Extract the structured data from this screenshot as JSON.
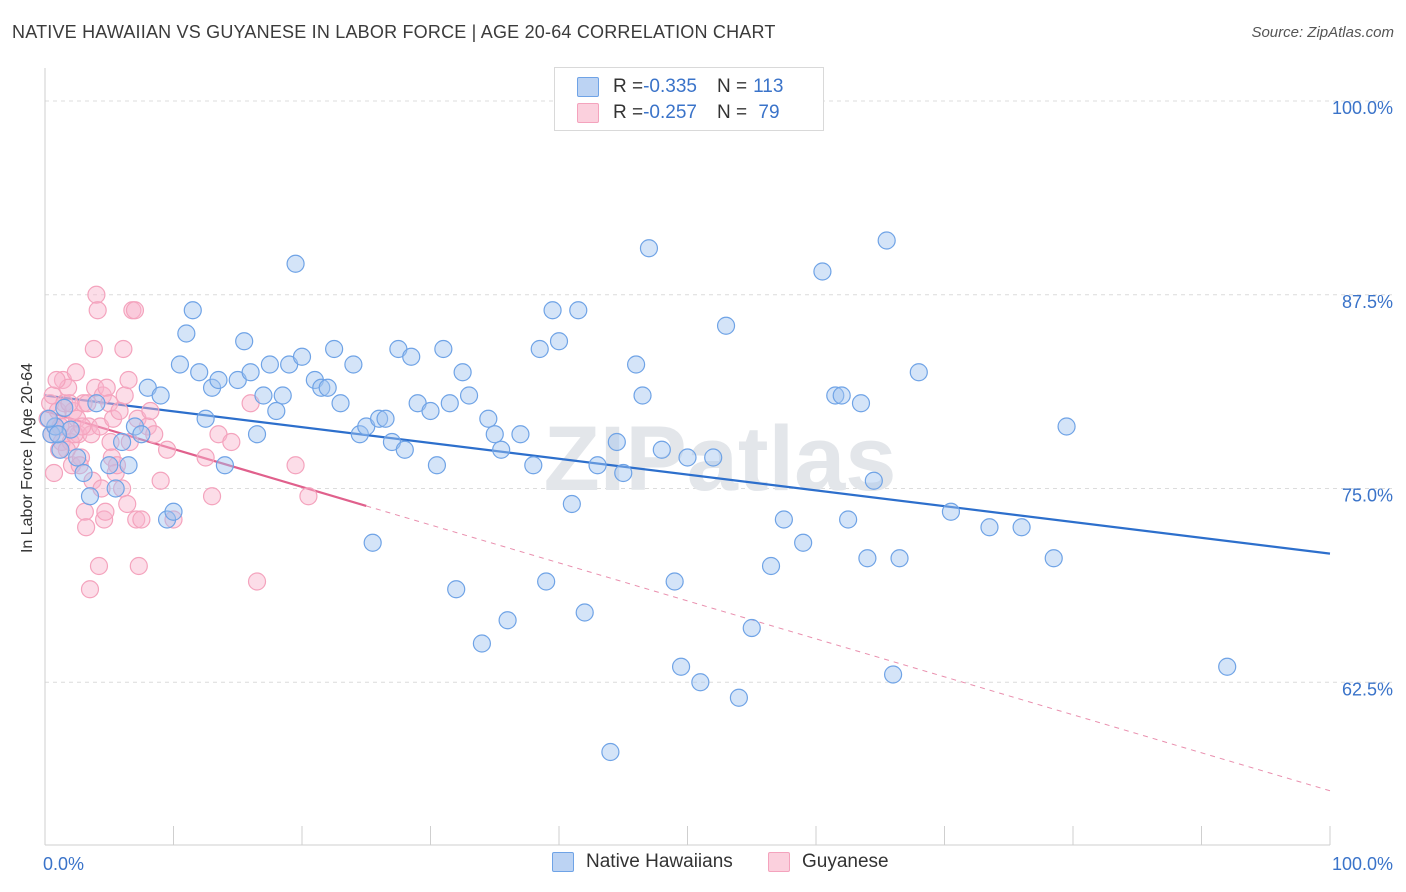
{
  "title": "NATIVE HAWAIIAN VS GUYANESE IN LABOR FORCE | AGE 20-64 CORRELATION CHART",
  "source": "Source: ZipAtlas.com",
  "chart_data": {
    "type": "scatter",
    "title": "NATIVE HAWAIIAN VS GUYANESE IN LABOR FORCE | AGE 20-64 CORRELATION CHART",
    "xlabel": "",
    "ylabel": "In Labor Force | Age 20-64",
    "xlim": [
      0,
      100
    ],
    "ylim": [
      52.0,
      102.0
    ],
    "x_tick_labels": [
      "0.0%",
      "100.0%"
    ],
    "y_ticks": [
      62.5,
      75.0,
      87.5,
      100.0
    ],
    "y_tick_labels": [
      "62.5%",
      "75.0%",
      "87.5%",
      "100.0%"
    ],
    "watermark": "ZIPatlas",
    "legend": {
      "rows": [
        {
          "r_label": "R = ",
          "r_value": "-0.335",
          "n_label": "N = ",
          "n_value": "113"
        },
        {
          "r_label": "R = ",
          "r_value": "-0.257",
          "n_label": "N = ",
          "n_value": " 79"
        }
      ]
    },
    "series": [
      {
        "name": "Native Hawaiians",
        "color": "#6fa3e6",
        "line_color": "#2d6fcc",
        "trend": {
          "x0": 0,
          "y0": 81.0,
          "x1": 100,
          "y1": 70.8,
          "solid_until": 100
        },
        "points": [
          [
            0.5,
            78.5
          ],
          [
            0.8,
            79.0
          ],
          [
            1.2,
            77.5
          ],
          [
            1.5,
            80.2
          ],
          [
            2.0,
            78.8
          ],
          [
            2.5,
            77.0
          ],
          [
            3.0,
            76.0
          ],
          [
            3.5,
            74.5
          ],
          [
            4.0,
            80.5
          ],
          [
            5.0,
            76.5
          ],
          [
            5.5,
            75.0
          ],
          [
            6.0,
            78.0
          ],
          [
            6.5,
            76.5
          ],
          [
            7.0,
            79.0
          ],
          [
            7.5,
            78.5
          ],
          [
            8.0,
            81.5
          ],
          [
            9.0,
            81.0
          ],
          [
            9.5,
            73.0
          ],
          [
            10.0,
            73.5
          ],
          [
            10.5,
            83.0
          ],
          [
            11.0,
            85.0
          ],
          [
            11.5,
            86.5
          ],
          [
            12.0,
            82.5
          ],
          [
            12.5,
            79.5
          ],
          [
            13.0,
            81.5
          ],
          [
            13.5,
            82.0
          ],
          [
            14.0,
            76.5
          ],
          [
            15.0,
            82.0
          ],
          [
            15.5,
            84.5
          ],
          [
            16.0,
            82.5
          ],
          [
            16.5,
            78.5
          ],
          [
            17.0,
            81.0
          ],
          [
            17.5,
            83.0
          ],
          [
            18.0,
            80.0
          ],
          [
            18.5,
            81.0
          ],
          [
            19.0,
            83.0
          ],
          [
            19.5,
            89.5
          ],
          [
            20.0,
            83.5
          ],
          [
            21.0,
            82.0
          ],
          [
            21.5,
            81.5
          ],
          [
            22.0,
            81.5
          ],
          [
            22.5,
            84.0
          ],
          [
            23.0,
            80.5
          ],
          [
            24.0,
            83.0
          ],
          [
            24.5,
            78.5
          ],
          [
            25.0,
            79.0
          ],
          [
            25.5,
            71.5
          ],
          [
            26.0,
            79.5
          ],
          [
            26.5,
            79.5
          ],
          [
            27.0,
            78.0
          ],
          [
            27.5,
            84.0
          ],
          [
            28.0,
            77.5
          ],
          [
            28.5,
            83.5
          ],
          [
            29.0,
            80.5
          ],
          [
            30.0,
            80.0
          ],
          [
            30.5,
            76.5
          ],
          [
            31.0,
            84.0
          ],
          [
            31.5,
            80.5
          ],
          [
            32.0,
            68.5
          ],
          [
            32.5,
            82.5
          ],
          [
            33.0,
            81.0
          ],
          [
            34.0,
            65.0
          ],
          [
            34.5,
            79.5
          ],
          [
            35.0,
            78.5
          ],
          [
            35.5,
            77.5
          ],
          [
            36.0,
            66.5
          ],
          [
            37.0,
            78.5
          ],
          [
            38.0,
            76.5
          ],
          [
            38.5,
            84.0
          ],
          [
            39.0,
            69.0
          ],
          [
            39.5,
            86.5
          ],
          [
            40.0,
            84.5
          ],
          [
            41.0,
            74.0
          ],
          [
            41.5,
            86.5
          ],
          [
            42.0,
            67.0
          ],
          [
            43.0,
            76.5
          ],
          [
            44.0,
            58.0
          ],
          [
            44.5,
            78.0
          ],
          [
            45.0,
            76.0
          ],
          [
            46.0,
            83.0
          ],
          [
            46.5,
            81.0
          ],
          [
            47.0,
            90.5
          ],
          [
            48.0,
            77.5
          ],
          [
            49.0,
            69.0
          ],
          [
            49.5,
            63.5
          ],
          [
            50.0,
            77.0
          ],
          [
            51.0,
            62.5
          ],
          [
            52.0,
            77.0
          ],
          [
            53.0,
            85.5
          ],
          [
            54.0,
            61.5
          ],
          [
            55.0,
            66.0
          ],
          [
            56.5,
            70.0
          ],
          [
            57.5,
            73.0
          ],
          [
            59.0,
            71.5
          ],
          [
            60.5,
            89.0
          ],
          [
            61.5,
            81.0
          ],
          [
            62.0,
            81.0
          ],
          [
            62.5,
            73.0
          ],
          [
            63.5,
            80.5
          ],
          [
            64.0,
            70.5
          ],
          [
            64.5,
            75.5
          ],
          [
            65.5,
            91.0
          ],
          [
            66.0,
            63.0
          ],
          [
            66.5,
            70.5
          ],
          [
            68.0,
            82.5
          ],
          [
            70.5,
            73.5
          ],
          [
            73.5,
            72.5
          ],
          [
            76.0,
            72.5
          ],
          [
            78.5,
            70.5
          ],
          [
            79.5,
            79.0
          ],
          [
            92.0,
            63.5
          ],
          [
            0.3,
            79.5
          ],
          [
            1.0,
            78.5
          ]
        ]
      },
      {
        "name": "Guyanese",
        "color": "#f4a3bd",
        "line_color": "#e0608c",
        "trend": {
          "x0": 0,
          "y0": 80.0,
          "x1": 100,
          "y1": 55.5,
          "solid_until": 25
        },
        "points": [
          [
            0.2,
            79.5
          ],
          [
            0.4,
            80.5
          ],
          [
            0.5,
            78.5
          ],
          [
            0.6,
            81.0
          ],
          [
            0.8,
            79.0
          ],
          [
            1.0,
            80.0
          ],
          [
            1.1,
            77.5
          ],
          [
            1.3,
            78.0
          ],
          [
            1.4,
            82.0
          ],
          [
            1.5,
            80.5
          ],
          [
            1.6,
            79.0
          ],
          [
            1.8,
            81.5
          ],
          [
            2.0,
            78.0
          ],
          [
            2.1,
            76.5
          ],
          [
            2.2,
            80.0
          ],
          [
            2.4,
            82.5
          ],
          [
            2.5,
            79.5
          ],
          [
            2.6,
            78.5
          ],
          [
            2.8,
            77.0
          ],
          [
            3.0,
            80.5
          ],
          [
            3.1,
            73.5
          ],
          [
            3.2,
            72.5
          ],
          [
            3.4,
            79.0
          ],
          [
            3.5,
            68.5
          ],
          [
            3.6,
            78.5
          ],
          [
            3.8,
            84.0
          ],
          [
            3.9,
            81.5
          ],
          [
            4.0,
            87.5
          ],
          [
            4.1,
            86.5
          ],
          [
            4.2,
            70.0
          ],
          [
            4.3,
            79.0
          ],
          [
            4.5,
            81.0
          ],
          [
            4.6,
            73.0
          ],
          [
            4.7,
            73.5
          ],
          [
            4.8,
            81.5
          ],
          [
            5.0,
            80.5
          ],
          [
            5.1,
            78.0
          ],
          [
            5.2,
            77.0
          ],
          [
            5.3,
            79.5
          ],
          [
            5.5,
            76.0
          ],
          [
            5.6,
            76.5
          ],
          [
            5.8,
            80.0
          ],
          [
            6.0,
            75.0
          ],
          [
            6.1,
            84.0
          ],
          [
            6.2,
            81.0
          ],
          [
            6.4,
            74.0
          ],
          [
            6.5,
            82.0
          ],
          [
            6.6,
            78.0
          ],
          [
            6.8,
            86.5
          ],
          [
            7.0,
            86.5
          ],
          [
            7.1,
            73.0
          ],
          [
            7.2,
            79.5
          ],
          [
            7.3,
            70.0
          ],
          [
            7.5,
            73.0
          ],
          [
            8.0,
            79.0
          ],
          [
            8.2,
            80.0
          ],
          [
            8.5,
            78.5
          ],
          [
            9.0,
            75.5
          ],
          [
            9.5,
            77.5
          ],
          [
            10.0,
            73.0
          ],
          [
            12.5,
            77.0
          ],
          [
            13.0,
            74.5
          ],
          [
            13.5,
            78.5
          ],
          [
            14.5,
            78.0
          ],
          [
            16.0,
            80.5
          ],
          [
            16.5,
            69.0
          ],
          [
            19.5,
            76.5
          ],
          [
            20.5,
            74.5
          ],
          [
            1.2,
            79.0
          ],
          [
            1.7,
            77.5
          ],
          [
            2.3,
            78.5
          ],
          [
            2.9,
            79.0
          ],
          [
            3.3,
            80.5
          ],
          [
            0.7,
            76.0
          ],
          [
            0.9,
            82.0
          ],
          [
            1.9,
            80.5
          ],
          [
            2.7,
            76.5
          ],
          [
            3.7,
            75.5
          ],
          [
            4.4,
            75.0
          ]
        ]
      }
    ]
  },
  "bottom_legend": [
    "Native Hawaiians",
    "Guyanese"
  ]
}
